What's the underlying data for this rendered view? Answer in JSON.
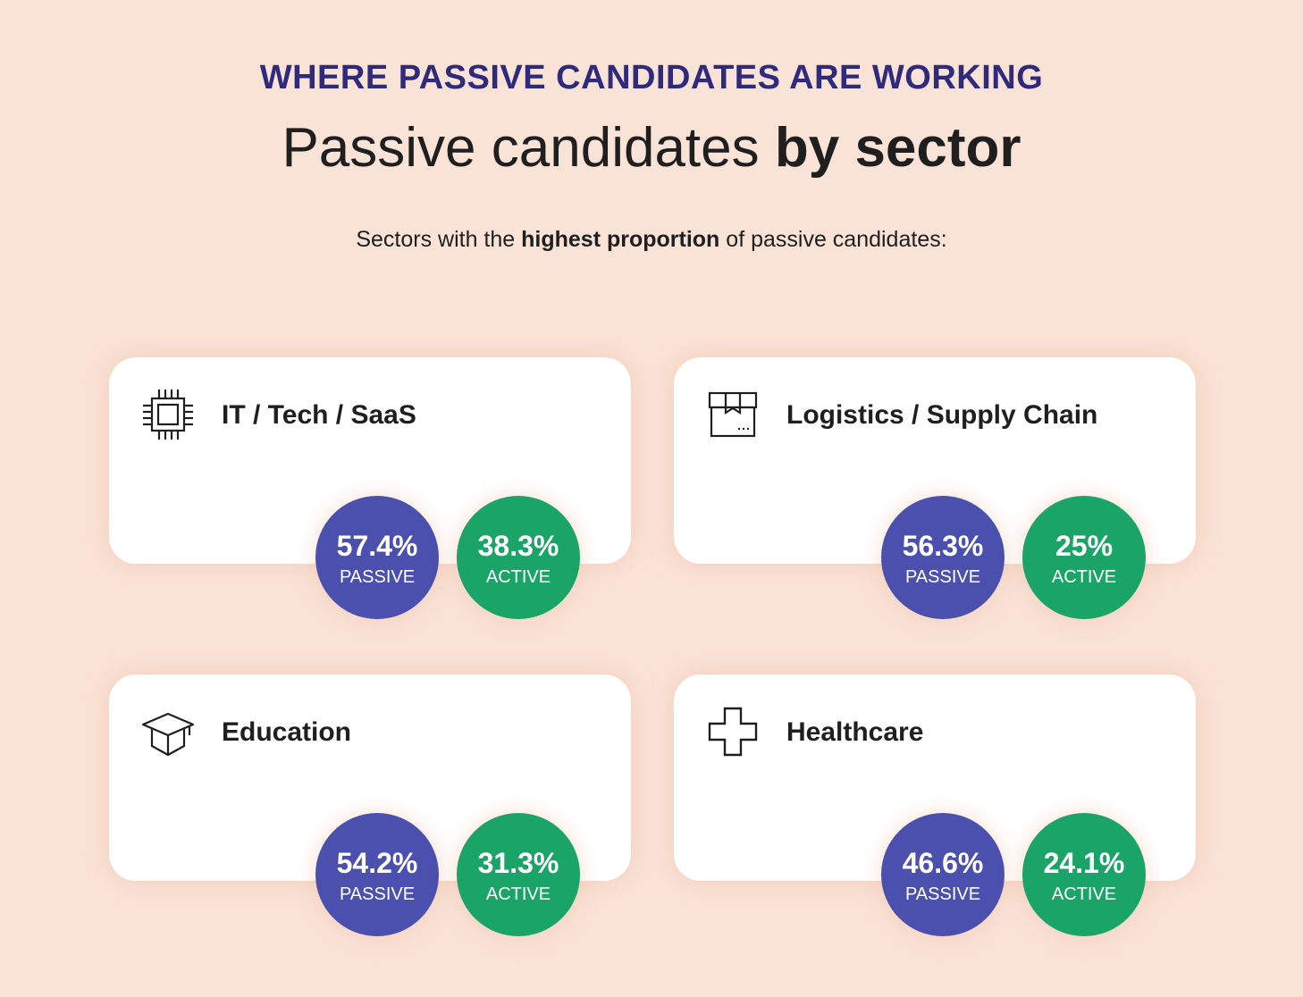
{
  "eyebrow": "WHERE PASSIVE CANDIDATES ARE WORKING",
  "headline": {
    "regular": "Passive candidates ",
    "bold": "by sector"
  },
  "subtitle": {
    "pre": "Sectors with the ",
    "bold": "highest proportion",
    "post": " of passive candidates:"
  },
  "colors": {
    "background": "#f9e2d6",
    "eyebrow": "#2f2a7c",
    "passive": "#4b4fae",
    "active": "#1ba468"
  },
  "sectors": [
    {
      "name": "IT / Tech / SaaS",
      "icon": "cpu-chip-icon",
      "passive": {
        "value": "57.4%",
        "label": "PASSIVE"
      },
      "active": {
        "value": "38.3%",
        "label": "ACTIVE"
      }
    },
    {
      "name": "Logistics / Supply Chain",
      "icon": "package-box-icon",
      "passive": {
        "value": "56.3%",
        "label": "PASSIVE"
      },
      "active": {
        "value": "25%",
        "label": "ACTIVE"
      }
    },
    {
      "name": "Education",
      "icon": "graduation-cap-icon",
      "passive": {
        "value": "54.2%",
        "label": "PASSIVE"
      },
      "active": {
        "value": "31.3%",
        "label": "ACTIVE"
      }
    },
    {
      "name": "Healthcare",
      "icon": "medical-cross-icon",
      "passive": {
        "value": "46.6%",
        "label": "PASSIVE"
      },
      "active": {
        "value": "24.1%",
        "label": "ACTIVE"
      }
    }
  ]
}
